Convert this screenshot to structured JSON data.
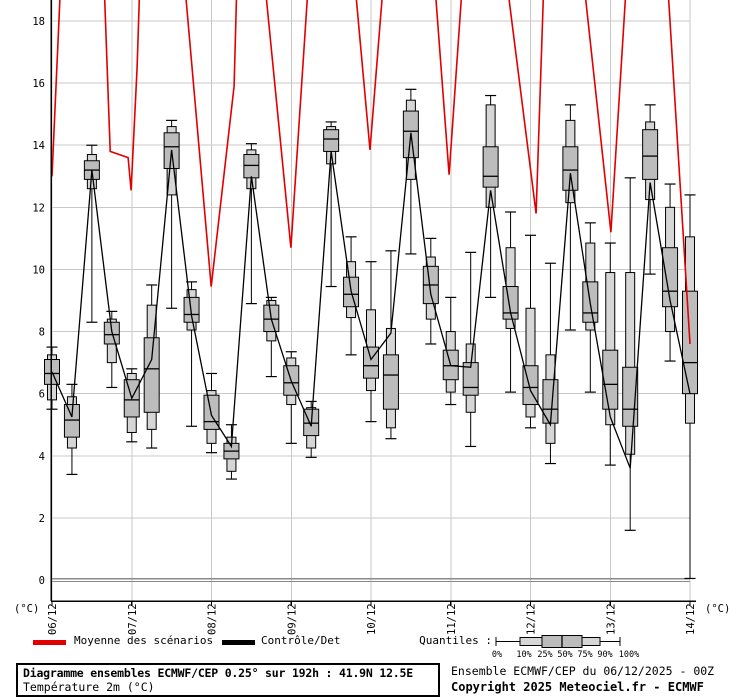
{
  "chart": {
    "y_axis_unit_left": "(°C)",
    "y_axis_unit_right": "(°C)",
    "legend": {
      "mean_label": "Moyenne des scénarios",
      "mean_color": "#e00000",
      "control_label": "Contrôle/Det",
      "control_color": "#000000",
      "quantiles_label": "Quantiles :"
    },
    "footer": {
      "title": "Diagramme ensembles ECMWF/CEP 0.25° sur 192h : 41.9N 12.5E",
      "subtitle": "Température 2m (°C)",
      "run_line": "Ensemble ECMWF/CEP du 06/12/2025 - 00Z",
      "copyright_line": "Copyright 2025 Meteociel.fr - ECMWF"
    }
  },
  "chart_data": {
    "type": "boxplot-timeseries-ensemble",
    "title": "Diagramme ensembles ECMWF/CEP 0.25° sur 192h : 41.9N 12.5E",
    "ylabel": "Température 2m (°C)",
    "x_tick_labels": [
      "06/12",
      "07/12",
      "08/12",
      "09/12",
      "10/12",
      "11/12",
      "12/12",
      "13/12",
      "14/12"
    ],
    "y_ticks": [
      0,
      2,
      4,
      6,
      8,
      10,
      12,
      14,
      16,
      18
    ],
    "ylim": [
      -0.68,
      18.68
    ],
    "grid": true,
    "zero_line": true,
    "step_hours": 6,
    "total_hours": 192,
    "quantile_order": [
      "max",
      "p90",
      "p75",
      "p50",
      "p25",
      "p10",
      "min"
    ],
    "quantile_tick_labels": [
      "0%",
      "10%",
      "25%",
      "50%",
      "75%",
      "90%",
      "100%"
    ],
    "boxes": [
      [
        7.5,
        7.25,
        7.1,
        6.65,
        6.3,
        5.8,
        5.5
      ],
      [
        6.3,
        5.9,
        5.65,
        5.15,
        4.6,
        4.25,
        3.4
      ],
      [
        14.0,
        13.7,
        13.5,
        13.2,
        12.9,
        12.6,
        8.3
      ],
      [
        8.65,
        8.4,
        8.3,
        7.9,
        7.6,
        7.0,
        6.2
      ],
      [
        6.8,
        6.65,
        6.45,
        5.8,
        5.25,
        4.75,
        4.45
      ],
      [
        9.5,
        8.85,
        7.8,
        6.8,
        5.4,
        4.85,
        4.25
      ],
      [
        14.8,
        14.6,
        14.4,
        13.95,
        13.25,
        12.4,
        8.75
      ],
      [
        9.6,
        9.35,
        9.1,
        8.55,
        8.3,
        8.05,
        4.95
      ],
      [
        6.65,
        6.1,
        5.95,
        5.1,
        4.85,
        4.4,
        4.1
      ],
      [
        5.0,
        4.6,
        4.4,
        4.15,
        3.9,
        3.5,
        3.25
      ],
      [
        14.05,
        13.85,
        13.7,
        13.35,
        12.95,
        12.6,
        8.9
      ],
      [
        9.1,
        9.0,
        8.85,
        8.4,
        8.0,
        7.7,
        6.55
      ],
      [
        7.35,
        7.15,
        6.9,
        6.35,
        5.95,
        5.65,
        4.4
      ],
      [
        5.75,
        5.55,
        5.5,
        5.05,
        4.65,
        4.25,
        3.95
      ],
      [
        14.75,
        14.6,
        14.5,
        14.2,
        13.8,
        13.4,
        9.45
      ],
      [
        11.05,
        10.25,
        9.75,
        9.2,
        8.8,
        8.45,
        7.25
      ],
      [
        10.25,
        8.7,
        7.5,
        6.9,
        6.5,
        6.1,
        5.1
      ],
      [
        10.6,
        8.1,
        7.25,
        6.6,
        5.5,
        4.9,
        4.55
      ],
      [
        15.8,
        15.45,
        15.1,
        14.45,
        13.6,
        12.9,
        10.5
      ],
      [
        11.0,
        10.4,
        10.1,
        9.5,
        8.9,
        8.4,
        7.6
      ],
      [
        9.1,
        8.0,
        7.4,
        6.9,
        6.45,
        6.05,
        5.65
      ],
      [
        10.55,
        7.6,
        7.0,
        6.2,
        5.95,
        5.4,
        4.3
      ],
      [
        15.6,
        15.3,
        13.95,
        13.0,
        12.65,
        12.0,
        9.1
      ],
      [
        11.85,
        10.7,
        9.45,
        8.6,
        8.4,
        8.1,
        6.05
      ],
      [
        11.1,
        8.75,
        6.9,
        6.2,
        5.65,
        5.25,
        4.9
      ],
      [
        10.2,
        7.25,
        6.45,
        5.5,
        5.05,
        4.4,
        3.75
      ],
      [
        15.3,
        14.8,
        13.95,
        13.2,
        12.55,
        12.15,
        8.05
      ],
      [
        11.5,
        10.85,
        9.6,
        8.6,
        8.3,
        8.05,
        6.05
      ],
      [
        10.85,
        9.9,
        7.4,
        6.3,
        5.5,
        5.0,
        3.7
      ],
      [
        12.95,
        9.9,
        6.85,
        5.5,
        4.95,
        4.05,
        1.6
      ],
      [
        15.3,
        14.75,
        14.5,
        13.65,
        12.9,
        12.25,
        9.85
      ],
      [
        12.75,
        12.0,
        10.7,
        9.3,
        8.8,
        8.0,
        7.05
      ],
      [
        12.4,
        11.05,
        9.3,
        7.0,
        6.0,
        5.05,
        0.05
      ]
    ],
    "series": [
      {
        "name": "Contrôle/Det",
        "color": "#000000",
        "values": [
          6.7,
          5.25,
          13.2,
          8.0,
          5.85,
          7.1,
          13.85,
          8.5,
          5.3,
          4.3,
          13.0,
          8.4,
          6.4,
          4.95,
          13.8,
          9.3,
          7.1,
          7.95,
          14.4,
          9.2,
          6.9,
          6.85,
          12.55,
          8.6,
          6.1,
          5.0,
          13.1,
          8.9,
          5.25,
          3.6,
          12.8,
          9.0,
          6.0
        ]
      },
      {
        "name": "Moyenne des scénarios",
        "color": "#e00000",
        "points_hour_value": [
          [
            0,
            13.0
          ],
          [
            2.7,
            19.5
          ],
          [
            15.6,
            19.5
          ],
          [
            17.5,
            13.8
          ],
          [
            22.9,
            13.6
          ],
          [
            23.8,
            12.55
          ],
          [
            25.6,
            16.5
          ],
          [
            26.5,
            19.5
          ],
          [
            39.7,
            19.5
          ],
          [
            47.9,
            9.45
          ],
          [
            54.8,
            15.9
          ],
          [
            55.7,
            19.5
          ],
          [
            63.8,
            19.5
          ],
          [
            71.9,
            10.7
          ],
          [
            77.3,
            19.5
          ],
          [
            90.9,
            19.5
          ],
          [
            95.7,
            13.85
          ],
          [
            99.9,
            19.5
          ],
          [
            115.0,
            19.5
          ],
          [
            119.5,
            13.05
          ],
          [
            123.7,
            19.5
          ],
          [
            136.6,
            19.5
          ],
          [
            145.7,
            11.8
          ],
          [
            148.1,
            19.5
          ],
          [
            159.8,
            19.5
          ],
          [
            168.2,
            11.2
          ],
          [
            173.0,
            19.5
          ],
          [
            185.1,
            19.5
          ],
          [
            192.0,
            7.6
          ]
        ]
      }
    ],
    "colors": {
      "box_outer_fill": "#d6d6d6",
      "box_inner_fill": "#bcbcbc",
      "grid": "#c9c9c9",
      "zero_line": "#8a8a8a",
      "axis": "#000000"
    }
  }
}
